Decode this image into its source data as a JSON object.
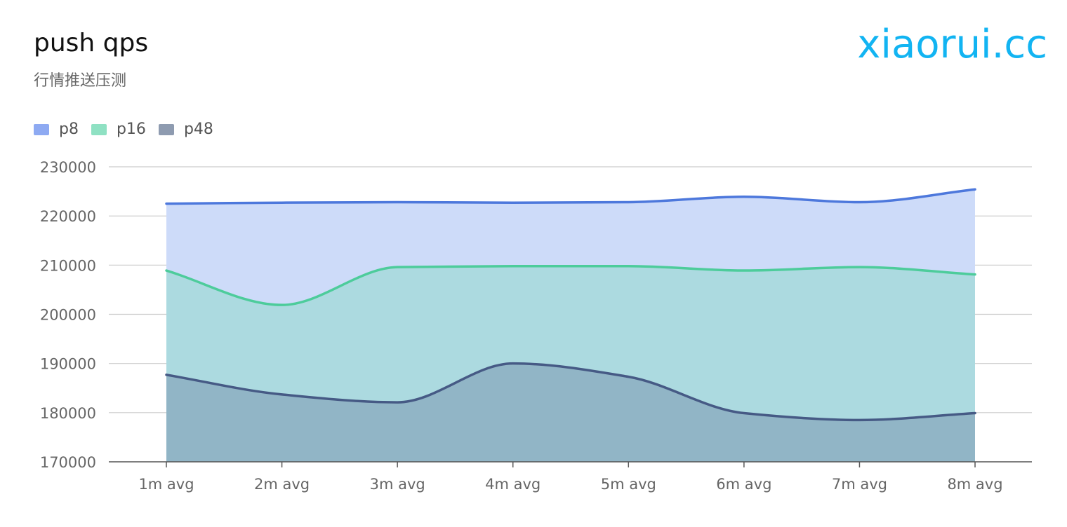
{
  "header": {
    "title": "push qps",
    "subtitle": "行情推送压测",
    "watermark": "xiaorui.cc"
  },
  "colors": {
    "p8_line": "#4d78dc",
    "p8_area": "#cddbf9",
    "p16_line": "#4dcc9b",
    "p16_area": "#acdae0",
    "p48_line": "#465a85",
    "p48_area": "#91b5c6",
    "grid": "#cccccc",
    "axis": "#555555",
    "watermark": "#12b4f2"
  },
  "chart_data": {
    "type": "area",
    "title": "push qps",
    "subtitle": "行情推送压测",
    "xlabel": "",
    "ylabel": "",
    "categories": [
      "1m avg",
      "2m avg",
      "3m avg",
      "4m avg",
      "5m avg",
      "6m avg",
      "7m avg",
      "8m avg"
    ],
    "ylim": [
      170000,
      230000
    ],
    "yticks": [
      170000,
      180000,
      190000,
      200000,
      210000,
      220000,
      230000
    ],
    "grid": true,
    "legend_position": "top-left",
    "smooth": true,
    "series": [
      {
        "name": "p8",
        "values": [
          222500,
          222700,
          222800,
          222700,
          222800,
          223900,
          222800,
          225400
        ],
        "legend_color": "#8eaaf2"
      },
      {
        "name": "p16",
        "values": [
          208900,
          201900,
          209600,
          209800,
          209800,
          208900,
          209600,
          208100
        ],
        "legend_color": "#8fe1c3"
      },
      {
        "name": "p48",
        "values": [
          187700,
          183700,
          182100,
          190000,
          187300,
          179900,
          178500,
          179900
        ],
        "legend_color": "#8e9bb0"
      }
    ]
  }
}
